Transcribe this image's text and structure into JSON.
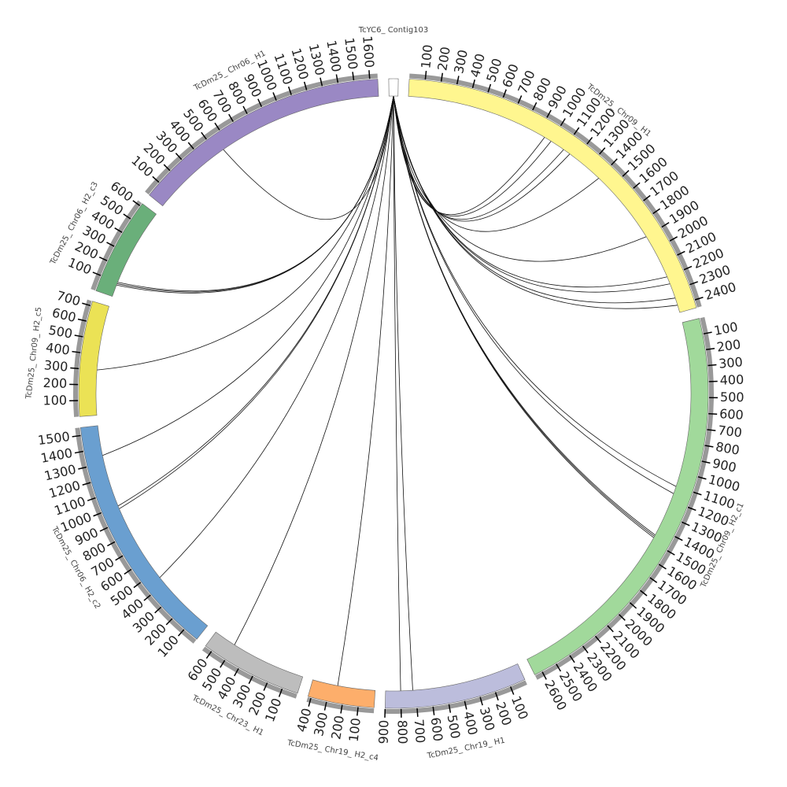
{
  "chart_data": {
    "type": "circos",
    "segments": [
      {
        "name": "TcYC6_ Contig103",
        "color": "#ffffff",
        "length": 60,
        "ticks": [],
        "link_positions": []
      },
      {
        "name": "TcDm25_ Chr09_ H1",
        "color": "#fff68f",
        "length": 2450,
        "ticks": [
          100,
          200,
          300,
          400,
          500,
          600,
          700,
          800,
          900,
          1000,
          1100,
          1200,
          1300,
          1400,
          1500,
          1600,
          1700,
          1800,
          1900,
          2000,
          2100,
          2200,
          2300,
          2400
        ],
        "link_positions": [
          950,
          1000,
          1100,
          1150,
          1400,
          1900,
          2200,
          2250,
          2350,
          2400
        ]
      },
      {
        "name": "TcDm25_ Chr09_ H2_c1",
        "color": "#a1d99b",
        "length": 2650,
        "ticks": [
          100,
          200,
          300,
          400,
          500,
          600,
          700,
          800,
          900,
          1000,
          1100,
          1200,
          1300,
          1400,
          1500,
          1600,
          1700,
          1800,
          1900,
          2000,
          2100,
          2200,
          2300,
          2400,
          2500,
          2600
        ],
        "link_positions": [
          1100,
          1150,
          1450,
          1460,
          1470
        ]
      },
      {
        "name": "TcDm25_ Chr19_ H1",
        "color": "#bcbddc",
        "length": 900,
        "ticks": [
          100,
          200,
          300,
          400,
          500,
          600,
          700,
          800,
          900
        ],
        "link_positions": [
          720,
          800
        ]
      },
      {
        "name": "TcDm25_ Chr19_ H2_c4",
        "color": "#fdae6b",
        "length": 420,
        "ticks": [
          100,
          200,
          300,
          400
        ],
        "link_positions": [
          250
        ]
      },
      {
        "name": "TcDm25_ Chr23_ H1",
        "color": "#bdbdbd",
        "length": 650,
        "ticks": [
          100,
          200,
          300,
          400,
          500,
          600
        ],
        "link_positions": [
          500
        ]
      },
      {
        "name": "TcDm25_ Chr06_ H2_c2",
        "color": "#6a9fd0",
        "length": 1550,
        "ticks": [
          100,
          200,
          300,
          400,
          500,
          600,
          700,
          800,
          900,
          1000,
          1100,
          1200,
          1300,
          1400,
          1500
        ],
        "link_positions": [
          450,
          980,
          1000,
          1350
        ]
      },
      {
        "name": "TcDm25_ Chr09_ H2_c5",
        "color": "#ebe255",
        "length": 730,
        "ticks": [
          100,
          200,
          300,
          400,
          500,
          600,
          700
        ],
        "link_positions": [
          300
        ]
      },
      {
        "name": "TcDm25_ Chr06_ H2_c3",
        "color": "#6aaf7a",
        "length": 620,
        "ticks": [
          100,
          200,
          300,
          400,
          500,
          600
        ],
        "link_positions": [
          80,
          90,
          100
        ]
      },
      {
        "name": "TcDm25_ Chr06_ H1",
        "color": "#9a88c4",
        "length": 1650,
        "ticks": [
          100,
          200,
          300,
          400,
          500,
          600,
          700,
          800,
          900,
          1000,
          1100,
          1200,
          1300,
          1400,
          1500,
          1600
        ],
        "link_positions": [
          550
        ]
      }
    ]
  }
}
